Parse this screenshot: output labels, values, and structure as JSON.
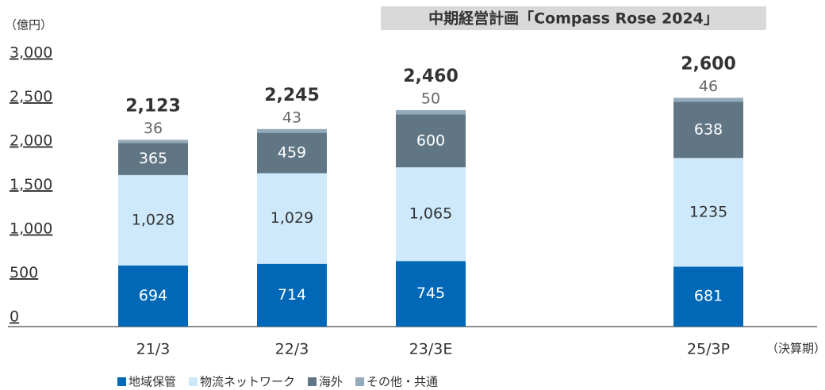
{
  "chart_data": {
    "type": "stacked_bar",
    "banner": "中期経営計画「Compass Rose 2024」",
    "unit_label": "（億円）",
    "x_unit_label": "（決算期）",
    "categories": [
      "21/3",
      "22/3",
      "23/3E",
      null,
      "25/3P"
    ],
    "series": [
      {
        "name": "地域保管",
        "color": "#0068b7",
        "values": [
          694,
          714,
          745,
          null,
          681
        ]
      },
      {
        "name": "物流ネットワーク",
        "color": "#cde9fb",
        "values": [
          1028,
          1029,
          1065,
          null,
          1235
        ],
        "value_labels": [
          "1,028",
          "1,029",
          "1,065",
          null,
          "1235"
        ]
      },
      {
        "name": "海外",
        "color": "#617684",
        "values": [
          365,
          459,
          600,
          null,
          638
        ]
      },
      {
        "name": "その他・共通",
        "color": "#93aabb",
        "values": [
          36,
          43,
          50,
          null,
          46
        ]
      }
    ],
    "totals": [
      2123,
      2245,
      2460,
      null,
      2600
    ],
    "total_labels": [
      "2,123",
      "2,245",
      "2,460",
      null,
      "2,600"
    ],
    "ylim": [
      0,
      3000
    ],
    "yticks": [
      0,
      500,
      {
        "value": 1000,
        "label": "1,000"
      },
      {
        "value": 1500,
        "label": "1,500"
      },
      {
        "value": 2000,
        "label": "2,000"
      },
      {
        "value": 2500,
        "label": "2,500"
      },
      {
        "value": 3000,
        "label": "3,000"
      }
    ]
  }
}
